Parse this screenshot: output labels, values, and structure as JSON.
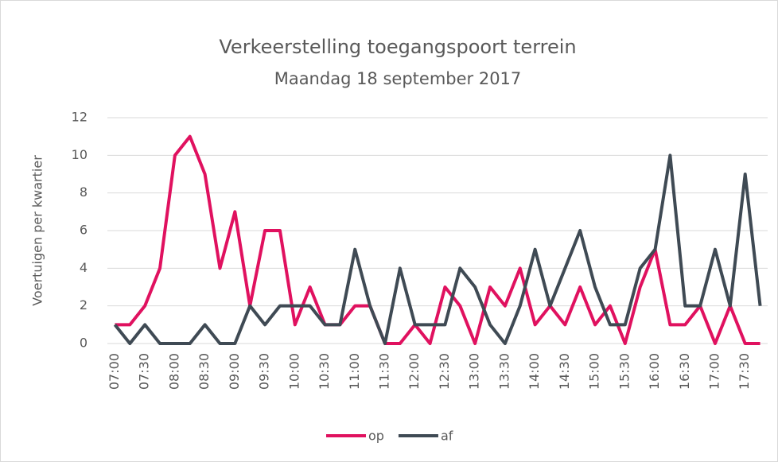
{
  "chart_data": {
    "type": "line",
    "title": "Verkeerstelling toegangspoort terrein",
    "subtitle": "Maandag 18 september 2017",
    "y_label": "Voertuigen per kwartier",
    "categories": [
      "07:00",
      null,
      "07:30",
      null,
      "08:00",
      null,
      "08:30",
      null,
      "09:00",
      null,
      "09:30",
      null,
      "10:00",
      null,
      "10:30",
      null,
      "11:00",
      null,
      "11:30",
      null,
      "12:00",
      null,
      "12:30",
      null,
      "13:00",
      null,
      "13:30",
      null,
      "14:00",
      null,
      "14:30",
      null,
      "15:00",
      null,
      "15:30",
      null,
      "16:00",
      null,
      "16:30",
      null,
      "17:00",
      null,
      "17:30",
      null
    ],
    "series": [
      {
        "name": "op",
        "color": "#e0115f",
        "values": [
          1,
          1,
          2,
          4,
          10,
          11,
          9,
          4,
          7,
          2,
          6,
          6,
          1,
          3,
          1,
          1,
          2,
          2,
          0,
          0,
          1,
          0,
          3,
          2,
          0,
          3,
          2,
          4,
          1,
          2,
          1,
          3,
          1,
          2,
          0,
          3,
          5,
          1,
          1,
          2,
          0,
          2,
          0,
          0
        ]
      },
      {
        "name": "af",
        "color": "#3f4a54",
        "values": [
          1,
          0,
          1,
          0,
          0,
          0,
          1,
          0,
          0,
          2,
          1,
          2,
          2,
          2,
          1,
          1,
          5,
          2,
          0,
          4,
          1,
          1,
          1,
          4,
          3,
          1,
          0,
          2,
          5,
          2,
          4,
          6,
          3,
          1,
          1,
          4,
          5,
          10,
          2,
          2,
          5,
          2,
          9,
          2
        ]
      }
    ],
    "ylim": [
      0,
      12
    ],
    "yticks": [
      0,
      2,
      4,
      6,
      8,
      10,
      12
    ],
    "grid": true,
    "legend": "bottom"
  }
}
